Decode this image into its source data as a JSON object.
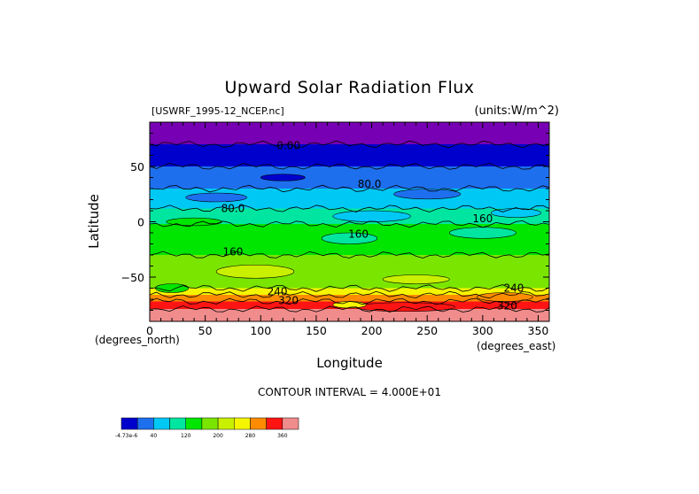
{
  "chart_data": {
    "type": "heatmap",
    "title": "Upward Solar Radiation Flux",
    "source_label": "[USWRF_1995-12_NCEP.nc]",
    "units_label": "(units:W/m^2)",
    "xlabel": "Longitude",
    "ylabel": "Latitude",
    "x_unit_label": "(degrees_east)",
    "y_unit_label": "(degrees_north)",
    "xlim": [
      0,
      360
    ],
    "ylim": [
      -90,
      90
    ],
    "x_ticks": [
      0,
      50,
      100,
      150,
      200,
      250,
      300,
      350
    ],
    "y_ticks": [
      50,
      0,
      -50
    ],
    "contour_interval_text": "CONTOUR INTERVAL = 4.000E+01",
    "contour_labels": [
      {
        "text": "0.00",
        "lon": 125,
        "lat": 69
      },
      {
        "text": "80.0",
        "lon": 198,
        "lat": 34
      },
      {
        "text": "80.0",
        "lon": 75,
        "lat": 12
      },
      {
        "text": "160",
        "lon": 188,
        "lat": -11
      },
      {
        "text": "160",
        "lon": 300,
        "lat": 3
      },
      {
        "text": "160",
        "lon": 75,
        "lat": -27
      },
      {
        "text": "240",
        "lon": 115,
        "lat": -63
      },
      {
        "text": "320",
        "lon": 125,
        "lat": -71
      },
      {
        "text": "240",
        "lon": 328,
        "lat": -60
      },
      {
        "text": "320",
        "lon": 322,
        "lat": -76
      }
    ],
    "colorbar": {
      "colors": [
        "#0000cd",
        "#1e6fee",
        "#00c8f5",
        "#00e6a0",
        "#00e600",
        "#7ae600",
        "#c8f000",
        "#f5f500",
        "#ff8c00",
        "#ff1414",
        "#f08c8c"
      ],
      "tick_labels": [
        {
          "text": "-4.73e-6",
          "after": 0
        },
        {
          "text": "40",
          "after": 1
        },
        {
          "text": "120",
          "after": 3
        },
        {
          "text": "200",
          "after": 5
        },
        {
          "text": "280",
          "after": 7
        },
        {
          "text": "360",
          "after": 9
        }
      ]
    },
    "zonal_bands": [
      {
        "lat_top": 90,
        "lat_bottom": 70,
        "color": "#7800b4"
      },
      {
        "lat_top": 70,
        "lat_bottom": 50,
        "color": "#0000cd"
      },
      {
        "lat_top": 50,
        "lat_bottom": 30,
        "color": "#1e6fee"
      },
      {
        "lat_top": 30,
        "lat_bottom": 12,
        "color": "#00c8f5"
      },
      {
        "lat_top": 12,
        "lat_bottom": -2,
        "color": "#00e6a0"
      },
      {
        "lat_top": -2,
        "lat_bottom": -30,
        "color": "#00e600"
      },
      {
        "lat_top": -30,
        "lat_bottom": -60,
        "color": "#7ae600"
      },
      {
        "lat_top": -60,
        "lat_bottom": -66,
        "color": "#f5f500"
      },
      {
        "lat_top": -66,
        "lat_bottom": -72,
        "color": "#ff8c00"
      },
      {
        "lat_top": -72,
        "lat_bottom": -79,
        "color": "#ff1414"
      },
      {
        "lat_top": -79,
        "lat_bottom": -90,
        "color": "#f08c8c"
      }
    ],
    "features": [
      {
        "lon": 60,
        "lat": 22,
        "w": 55,
        "h": 8,
        "color": "#1e6fee"
      },
      {
        "lon": 250,
        "lat": 25,
        "w": 60,
        "h": 9,
        "color": "#1e6fee"
      },
      {
        "lon": 120,
        "lat": 40,
        "w": 40,
        "h": 6,
        "color": "#0000cd"
      },
      {
        "lon": 200,
        "lat": 5,
        "w": 70,
        "h": 10,
        "color": "#00c8f5"
      },
      {
        "lon": 330,
        "lat": 8,
        "w": 45,
        "h": 8,
        "color": "#00c8f5"
      },
      {
        "lon": 40,
        "lat": 0,
        "w": 50,
        "h": 7,
        "color": "#00e600"
      },
      {
        "lon": 300,
        "lat": -10,
        "w": 60,
        "h": 10,
        "color": "#00e6a0"
      },
      {
        "lon": 180,
        "lat": -15,
        "w": 50,
        "h": 10,
        "color": "#00e6a0"
      },
      {
        "lon": 95,
        "lat": -45,
        "w": 70,
        "h": 12,
        "color": "#c8f000"
      },
      {
        "lon": 240,
        "lat": -52,
        "w": 60,
        "h": 8,
        "color": "#c8f000"
      },
      {
        "lon": 20,
        "lat": -60,
        "w": 30,
        "h": 8,
        "color": "#00e600"
      },
      {
        "lon": 230,
        "lat": -77,
        "w": 90,
        "h": 8,
        "color": "#ff1414"
      },
      {
        "lon": 320,
        "lat": -68,
        "w": 50,
        "h": 8,
        "color": "#ff8c00"
      },
      {
        "lon": 180,
        "lat": -75,
        "w": 30,
        "h": 6,
        "color": "#f5f500"
      }
    ]
  }
}
